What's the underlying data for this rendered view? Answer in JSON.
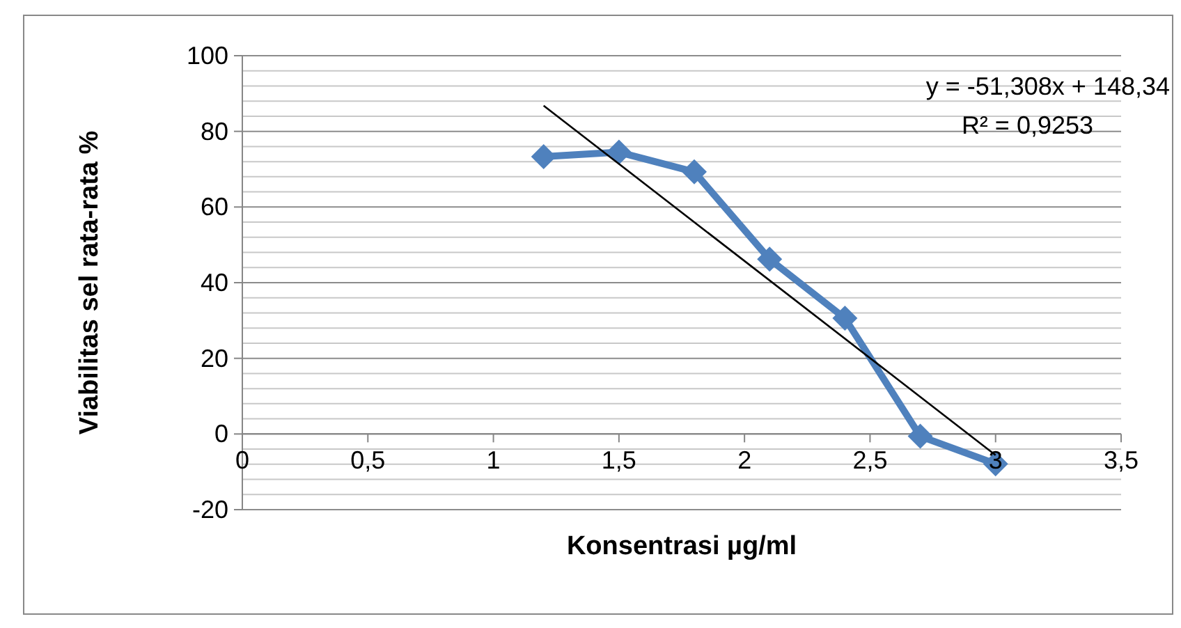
{
  "chart_data": {
    "type": "line",
    "xlabel": "Konsentrasi µg/ml",
    "ylabel": "Viabilitas sel rata-rata %",
    "xlim": [
      0,
      3.5
    ],
    "xticks": [
      {
        "value": 0,
        "label": "0"
      },
      {
        "value": 0.5,
        "label": "0,5"
      },
      {
        "value": 1,
        "label": "1"
      },
      {
        "value": 1.5,
        "label": "1,5"
      },
      {
        "value": 2,
        "label": "2"
      },
      {
        "value": 2.5,
        "label": "2,5"
      },
      {
        "value": 3,
        "label": "3"
      },
      {
        "value": 3.5,
        "label": "3,5"
      }
    ],
    "ylim": [
      -20,
      100
    ],
    "yticks": [
      -20,
      {
        "value": -16,
        "label": null
      },
      {
        "value": -12,
        "label": null
      },
      {
        "value": -8,
        "label": null
      },
      {
        "value": -4,
        "label": null
      },
      0,
      {
        "value": 4,
        "label": null
      },
      {
        "value": 8,
        "label": null
      },
      {
        "value": 12,
        "label": null
      },
      {
        "value": 16,
        "label": null
      },
      20,
      {
        "value": 24,
        "label": null
      },
      {
        "value": 28,
        "label": null
      },
      {
        "value": 32,
        "label": null
      },
      {
        "value": 36,
        "label": null
      },
      40,
      {
        "value": 44,
        "label": null
      },
      {
        "value": 48,
        "label": null
      },
      {
        "value": 52,
        "label": null
      },
      {
        "value": 56,
        "label": null
      },
      60,
      {
        "value": 64,
        "label": null
      },
      {
        "value": 68,
        "label": null
      },
      {
        "value": 72,
        "label": null
      },
      {
        "value": 76,
        "label": null
      },
      80,
      {
        "value": 84,
        "label": null
      },
      {
        "value": 88,
        "label": null
      },
      {
        "value": 92,
        "label": null
      },
      {
        "value": 96,
        "label": null
      },
      100
    ],
    "grid": "y",
    "series": [
      {
        "x": [
          1.2,
          1.5,
          1.8,
          2.1,
          2.4,
          2.7,
          3
        ],
        "values": [
          73.3,
          74.5,
          69.3,
          46.2,
          30.6,
          -0.6,
          -7.9
        ],
        "color": "#4f81bd",
        "marker": "diamond"
      },
      {
        "type": "line",
        "x": [
          1.2,
          3
        ],
        "values": [
          86.8,
          -5.6
        ],
        "color": "#000000",
        "marker": "none"
      }
    ],
    "annotations": [
      "y = -51,308x + 148,34",
      "R² = 0,9253"
    ]
  }
}
